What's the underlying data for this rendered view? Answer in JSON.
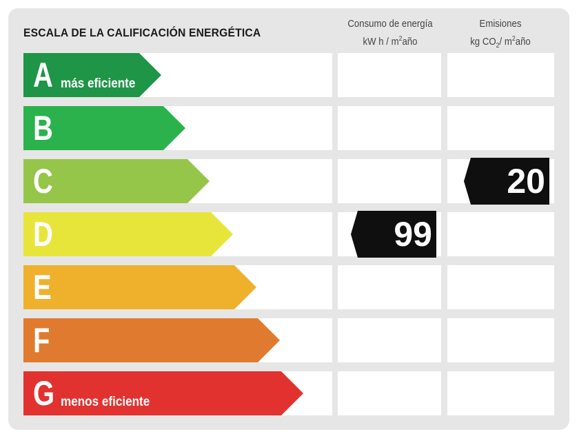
{
  "title": "ESCALA DE LA CALIFICACIÓN ENERGÉTICA",
  "columns": {
    "energy": {
      "line1": "Consumo de energía",
      "line2_pre": "kW h / m",
      "line2_sup": "2",
      "line2_post": "año"
    },
    "emissions": {
      "line1": "Emisiones",
      "line2_pre": "kg CO",
      "line2_sub": "2",
      "line2_mid": "/ m",
      "line2_sup": "2",
      "line2_post": "año"
    }
  },
  "ratings": [
    {
      "letter": "A",
      "label": "más eficiente",
      "color": "#1e9547"
    },
    {
      "letter": "B",
      "label": "",
      "color": "#2bb24d"
    },
    {
      "letter": "C",
      "label": "",
      "color": "#95c64a"
    },
    {
      "letter": "D",
      "label": "",
      "color": "#e8e53a"
    },
    {
      "letter": "E",
      "label": "",
      "color": "#efb12c"
    },
    {
      "letter": "F",
      "label": "",
      "color": "#e07a2e"
    },
    {
      "letter": "G",
      "label": "menos eficiente",
      "color": "#e2322f"
    }
  ],
  "energy_rating": {
    "value": "99",
    "class": "D"
  },
  "emissions_rating": {
    "value": "20",
    "class": "C"
  }
}
